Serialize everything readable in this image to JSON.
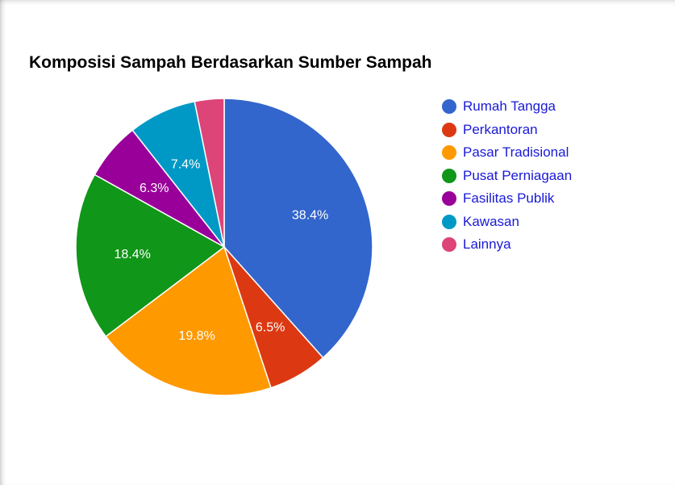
{
  "chart_data": {
    "type": "pie",
    "title": "Komposisi Sampah Berdasarkan Sumber Sampah",
    "categories": [
      "Rumah Tangga",
      "Perkantoran",
      "Pasar Tradisional",
      "Pusat Perniagaan",
      "Fasilitas Publik",
      "Kawasan",
      "Lainnya"
    ],
    "values": [
      38.4,
      6.5,
      19.8,
      18.4,
      6.3,
      7.4,
      3.2
    ],
    "labels": [
      "38.4%",
      "6.5%",
      "19.8%",
      "18.4%",
      "6.3%",
      "7.4%",
      ""
    ],
    "colors": [
      "#3366cc",
      "#dc3912",
      "#ff9900",
      "#109618",
      "#990099",
      "#0099c6",
      "#dd4477"
    ],
    "legend_position": "right"
  }
}
